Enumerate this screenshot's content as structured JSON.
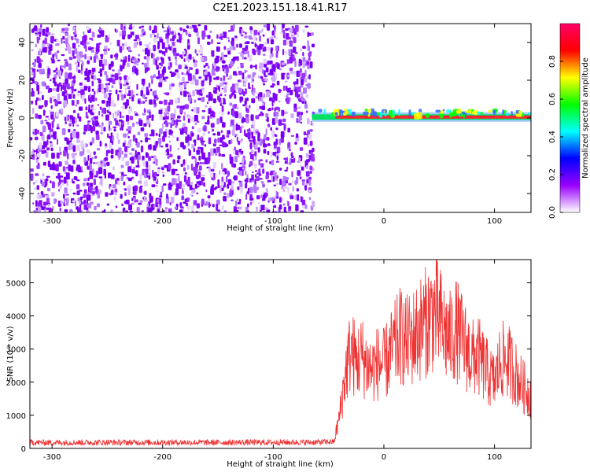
{
  "figure_title": "C2E1.2023.151.18.41.R17",
  "chart_data": [
    {
      "type": "heatmap",
      "title": "",
      "xlabel": "Height of straight line (km)",
      "ylabel": "Frequency (Hz)",
      "xlim": [
        -320,
        133
      ],
      "ylim": [
        -50,
        50
      ],
      "xticks": [
        -300,
        -200,
        -100,
        0,
        100
      ],
      "yticks": [
        -40,
        -20,
        0,
        20,
        40
      ],
      "noise_region_x": [
        -320,
        -65
      ],
      "signal_region_x": [
        -65,
        133
      ],
      "signal_frequency": 0.5,
      "colorbar": {
        "label": "Normalized spectral amplitude",
        "range": [
          0,
          1
        ],
        "ticks": [
          0.0,
          0.2,
          0.4,
          0.6,
          0.8
        ],
        "tick_labels": [
          "0.0",
          "0.2",
          "0.4",
          "0.6",
          "0.8"
        ],
        "colormap": [
          "#ffffff",
          "#9900ff",
          "#0000ff",
          "#00ffff",
          "#00ff00",
          "#ffff00",
          "#ff0000",
          "#ff0066"
        ]
      }
    },
    {
      "type": "line",
      "title": "",
      "xlabel": "Height of straight line (km)",
      "ylabel": "SNR (10 * v/v)",
      "xlim": [
        -320,
        133
      ],
      "ylim": [
        0,
        5700
      ],
      "xticks": [
        -300,
        -200,
        -100,
        0,
        100
      ],
      "yticks": [
        0,
        1000,
        2000,
        3000,
        4000,
        5000
      ],
      "color": "#ee3333",
      "series": [
        {
          "x": [
            -320,
            -300,
            -250,
            -200,
            -150,
            -100,
            -60,
            -45,
            -40,
            -35,
            -30,
            -25,
            -20,
            -15,
            -10,
            -5,
            0,
            5,
            10,
            15,
            20,
            25,
            30,
            35,
            40,
            45,
            50,
            55,
            60,
            65,
            70,
            75,
            80,
            85,
            90,
            95,
            100,
            105,
            110,
            115,
            120,
            125,
            133
          ],
          "values": [
            180,
            175,
            180,
            178,
            180,
            182,
            185,
            200,
            1000,
            2200,
            3000,
            2600,
            2800,
            2500,
            2400,
            2600,
            2500,
            2800,
            3100,
            3400,
            3200,
            3300,
            3500,
            3700,
            3900,
            4100,
            3900,
            3500,
            3300,
            3600,
            3300,
            3000,
            2700,
            2800,
            2500,
            2200,
            2000,
            2600,
            2700,
            2500,
            2200,
            1900,
            1600
          ]
        }
      ]
    }
  ]
}
